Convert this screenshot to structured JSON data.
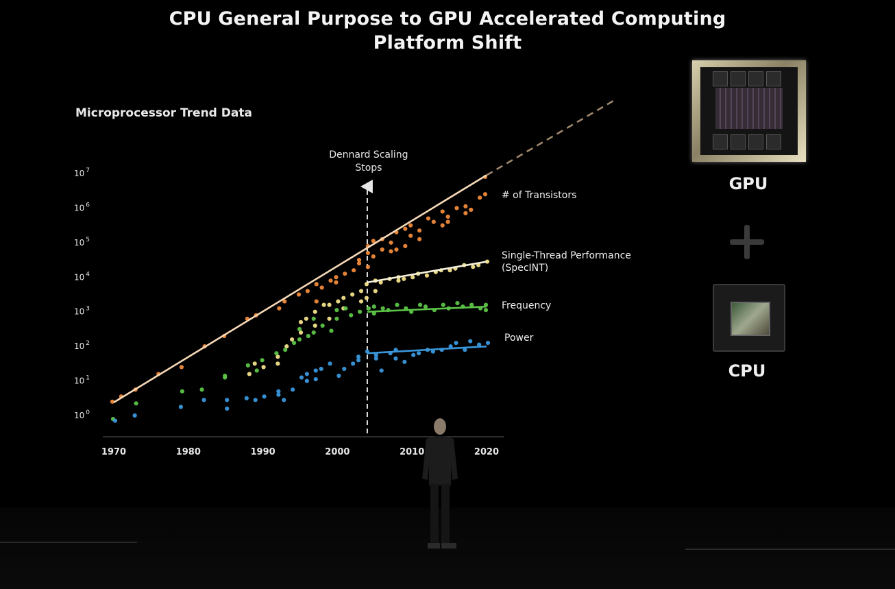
{
  "title_line1": "CPU General Purpose to GPU Accelerated Computing",
  "title_line2": "Platform Shift",
  "side": {
    "gpu_label": "GPU",
    "cpu_label": "CPU"
  },
  "chart_data": {
    "type": "scatter",
    "title": "Microprocessor Trend Data",
    "xlim": [
      1970,
      2020
    ],
    "ylim": [
      0,
      7
    ],
    "y_scale": "log",
    "x_tick_labels": [
      "1970",
      "1980",
      "1990",
      "2000",
      "2010",
      "2020"
    ],
    "y_tick_labels": [
      {
        "base": "10",
        "exp": "0"
      },
      {
        "base": "10",
        "exp": "1"
      },
      {
        "base": "10",
        "exp": "2"
      },
      {
        "base": "10",
        "exp": "3"
      },
      {
        "base": "10",
        "exp": "4"
      },
      {
        "base": "10",
        "exp": "5"
      },
      {
        "base": "10",
        "exp": "6"
      },
      {
        "base": "10",
        "exp": "7"
      }
    ],
    "annotation": {
      "year": 2004,
      "text_line1": "Dennard Scaling",
      "text_line2": "Stops"
    },
    "series": [
      {
        "name": "# of Transistors",
        "color": "#f08a3a",
        "trend": [
          [
            1970,
            0.38
          ],
          [
            2020,
            6.95
          ]
        ],
        "extension": [
          [
            2020,
            6.95
          ],
          [
            2037,
            9.1
          ]
        ],
        "points": [
          [
            1970,
            0.4
          ],
          [
            1971,
            0.55
          ],
          [
            1973,
            0.75
          ],
          [
            1976,
            1.2
          ],
          [
            1979,
            1.4
          ],
          [
            1982,
            2.0
          ],
          [
            1985,
            2.3
          ],
          [
            1988,
            2.8
          ],
          [
            1989,
            2.9
          ],
          [
            1992,
            3.1
          ],
          [
            1993,
            3.3
          ],
          [
            1995,
            3.5
          ],
          [
            1996,
            3.6
          ],
          [
            1997,
            3.8
          ],
          [
            1997,
            3.3
          ],
          [
            1998,
            3.7
          ],
          [
            1999,
            3.9
          ],
          [
            2000,
            3.85
          ],
          [
            2000,
            4.0
          ],
          [
            2001,
            4.1
          ],
          [
            2002,
            4.2
          ],
          [
            2003,
            4.4
          ],
          [
            2003,
            4.5
          ],
          [
            2004,
            4.3
          ],
          [
            2004,
            4.7
          ],
          [
            2004,
            4.9
          ],
          [
            2005,
            4.6
          ],
          [
            2005,
            5.05
          ],
          [
            2006,
            4.8
          ],
          [
            2006,
            5.1
          ],
          [
            2007,
            4.75
          ],
          [
            2007,
            5.0
          ],
          [
            2008,
            5.3
          ],
          [
            2008,
            4.8
          ],
          [
            2009,
            5.4
          ],
          [
            2009,
            4.9
          ],
          [
            2010,
            5.2
          ],
          [
            2010,
            5.5
          ],
          [
            2011,
            5.1
          ],
          [
            2011,
            5.35
          ],
          [
            2012,
            5.7
          ],
          [
            2013,
            5.6
          ],
          [
            2014,
            5.9
          ],
          [
            2014,
            5.5
          ],
          [
            2015,
            5.6
          ],
          [
            2015,
            5.75
          ],
          [
            2016,
            6.0
          ],
          [
            2017,
            5.85
          ],
          [
            2017,
            6.05
          ],
          [
            2018,
            5.95
          ],
          [
            2019,
            6.3
          ],
          [
            2020,
            6.4
          ],
          [
            2020,
            6.9
          ]
        ]
      },
      {
        "name": "Single-Thread Performance (SpecINT)",
        "color": "#f2e08a",
        "trend": [
          [
            2004,
            3.85
          ],
          [
            2020,
            4.45
          ]
        ],
        "points": [
          [
            1988,
            1.2
          ],
          [
            1989,
            1.5
          ],
          [
            1990,
            1.4
          ],
          [
            1992,
            1.7
          ],
          [
            1992,
            1.5
          ],
          [
            1993,
            2.0
          ],
          [
            1994,
            2.2
          ],
          [
            1995,
            2.4
          ],
          [
            1995,
            2.7
          ],
          [
            1996,
            2.8
          ],
          [
            1997,
            2.6
          ],
          [
            1997,
            3.0
          ],
          [
            1998,
            3.2
          ],
          [
            1999,
            2.8
          ],
          [
            1999,
            3.2
          ],
          [
            2000,
            3.3
          ],
          [
            2001,
            3.4
          ],
          [
            2001,
            3.1
          ],
          [
            2002,
            3.5
          ],
          [
            2003,
            3.6
          ],
          [
            2003,
            3.3
          ],
          [
            2004,
            3.8
          ],
          [
            2004,
            3.4
          ],
          [
            2005,
            3.9
          ],
          [
            2005,
            3.6
          ],
          [
            2006,
            3.85
          ],
          [
            2007,
            3.95
          ],
          [
            2008,
            3.9
          ],
          [
            2008,
            4.0
          ],
          [
            2009,
            3.95
          ],
          [
            2010,
            4.0
          ],
          [
            2011,
            4.1
          ],
          [
            2012,
            4.05
          ],
          [
            2013,
            4.15
          ],
          [
            2014,
            4.2
          ],
          [
            2015,
            4.2
          ],
          [
            2016,
            4.25
          ],
          [
            2017,
            4.35
          ],
          [
            2018,
            4.3
          ],
          [
            2019,
            4.35
          ],
          [
            2020,
            4.45
          ]
        ]
      },
      {
        "name": "Frequency",
        "color": "#5cc447",
        "trend": [
          [
            2004,
            3.0
          ],
          [
            2020,
            3.15
          ]
        ],
        "points": [
          [
            1970,
            -0.1
          ],
          [
            1973,
            0.35
          ],
          [
            1979,
            0.7
          ],
          [
            1982,
            0.75
          ],
          [
            1985,
            1.1
          ],
          [
            1985,
            1.15
          ],
          [
            1988,
            1.45
          ],
          [
            1989,
            1.3
          ],
          [
            1990,
            1.6
          ],
          [
            1992,
            1.8
          ],
          [
            1993,
            1.9
          ],
          [
            1994,
            2.1
          ],
          [
            1995,
            2.2
          ],
          [
            1995,
            2.5
          ],
          [
            1996,
            2.3
          ],
          [
            1997,
            2.4
          ],
          [
            1997,
            2.8
          ],
          [
            1998,
            2.6
          ],
          [
            1999,
            2.45
          ],
          [
            2000,
            2.8
          ],
          [
            2000,
            3.05
          ],
          [
            2001,
            3.1
          ],
          [
            2002,
            2.9
          ],
          [
            2003,
            3.0
          ],
          [
            2004,
            3.1
          ],
          [
            2005,
            2.95
          ],
          [
            2005,
            3.15
          ],
          [
            2006,
            3.1
          ],
          [
            2007,
            3.05
          ],
          [
            2008,
            3.2
          ],
          [
            2009,
            3.1
          ],
          [
            2010,
            3.0
          ],
          [
            2011,
            3.2
          ],
          [
            2012,
            3.15
          ],
          [
            2013,
            3.05
          ],
          [
            2014,
            3.2
          ],
          [
            2015,
            3.1
          ],
          [
            2016,
            3.25
          ],
          [
            2017,
            3.15
          ],
          [
            2018,
            3.2
          ],
          [
            2019,
            3.1
          ],
          [
            2020,
            3.2
          ],
          [
            2020,
            3.05
          ]
        ]
      },
      {
        "name": "Power",
        "color": "#3a97dc",
        "trend": [
          [
            2004,
            1.8
          ],
          [
            2020,
            2.0
          ]
        ],
        "points": [
          [
            1970,
            -0.15
          ],
          [
            1973,
            0.0
          ],
          [
            1979,
            0.25
          ],
          [
            1982,
            0.45
          ],
          [
            1985,
            0.2
          ],
          [
            1985,
            0.45
          ],
          [
            1988,
            0.5
          ],
          [
            1989,
            0.45
          ],
          [
            1990,
            0.55
          ],
          [
            1992,
            0.6
          ],
          [
            1992,
            0.7
          ],
          [
            1993,
            0.45
          ],
          [
            1994,
            0.75
          ],
          [
            1995,
            1.1
          ],
          [
            1996,
            1.0
          ],
          [
            1996,
            1.2
          ],
          [
            1997,
            1.3
          ],
          [
            1997,
            1.05
          ],
          [
            1998,
            1.35
          ],
          [
            1999,
            1.5
          ],
          [
            2000,
            1.15
          ],
          [
            2001,
            1.35
          ],
          [
            2002,
            1.5
          ],
          [
            2003,
            1.7
          ],
          [
            2003,
            1.6
          ],
          [
            2004,
            1.85
          ],
          [
            2005,
            1.65
          ],
          [
            2005,
            1.75
          ],
          [
            2006,
            1.3
          ],
          [
            2007,
            1.8
          ],
          [
            2008,
            1.65
          ],
          [
            2008,
            1.9
          ],
          [
            2009,
            1.55
          ],
          [
            2010,
            1.75
          ],
          [
            2011,
            1.8
          ],
          [
            2012,
            1.9
          ],
          [
            2013,
            1.85
          ],
          [
            2014,
            1.9
          ],
          [
            2015,
            2.0
          ],
          [
            2016,
            2.1
          ],
          [
            2017,
            1.9
          ],
          [
            2018,
            2.15
          ],
          [
            2019,
            2.05
          ],
          [
            2020,
            2.1
          ]
        ]
      }
    ]
  }
}
